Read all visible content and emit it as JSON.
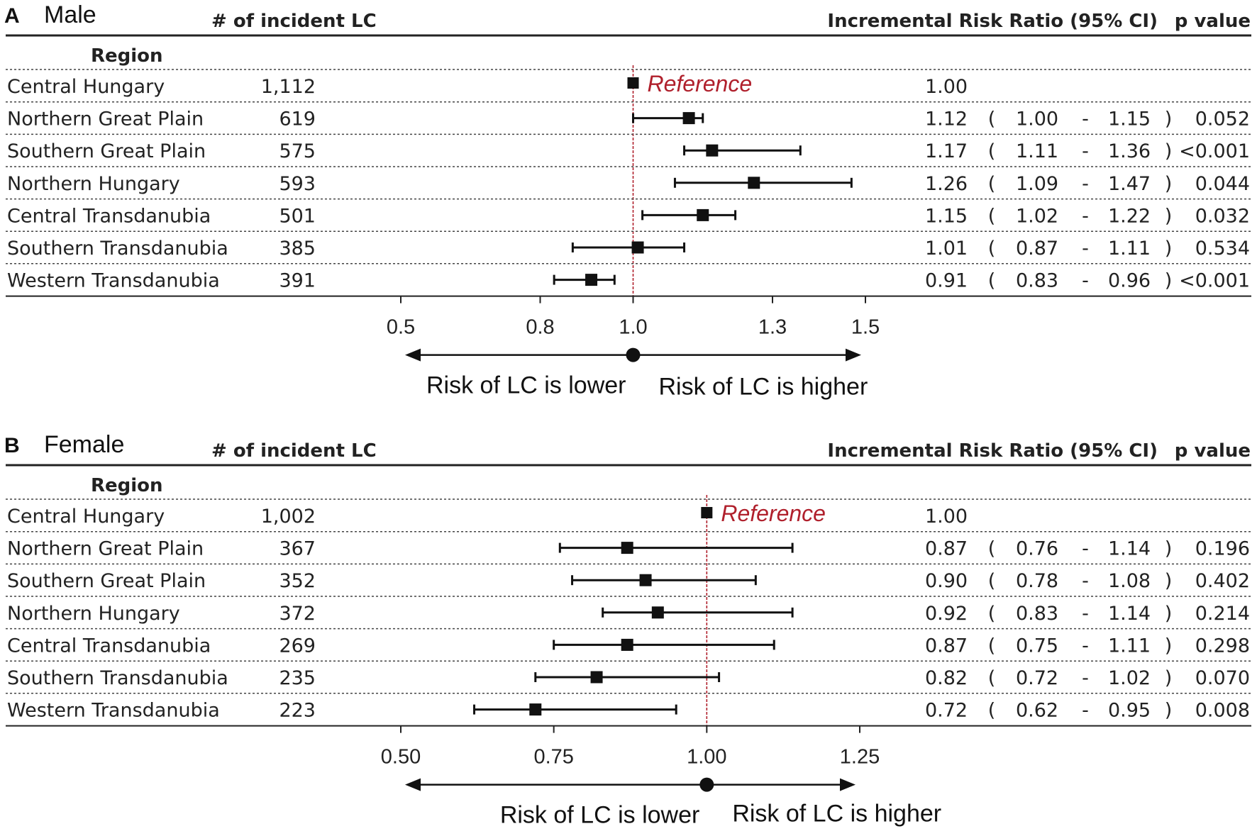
{
  "columns": {
    "incident": "# of incident LC",
    "irr": "Incremental Risk Ratio (95% CI)",
    "pvalue": "p value",
    "region": "Region"
  },
  "symbols": {
    "open": "(",
    "dash": "-",
    "close": ")"
  },
  "reference_label": "Reference",
  "risk_lower": "Risk of LC is lower",
  "risk_higher": "Risk of LC is higher",
  "colors": {
    "reference_line": "#b0202c",
    "marker": "#111111"
  },
  "chart_data": [
    {
      "type": "forest",
      "panel": "A",
      "title": "Male",
      "xlim": [
        0.5,
        1.5
      ],
      "ticks": [
        "0.5",
        "0.8",
        "1.0",
        "1.3",
        "1.5"
      ],
      "tick_values": [
        0.5,
        0.8,
        1.0,
        1.3,
        1.5
      ],
      "reference_value": 1.0,
      "rows": [
        {
          "region": "Central Hungary",
          "n": "1,112",
          "est": 1.0,
          "lo": null,
          "hi": null,
          "est_label": "1.00",
          "lo_label": "",
          "hi_label": "",
          "p": "",
          "reference": true
        },
        {
          "region": "Northern Great Plain",
          "n": "619",
          "est": 1.12,
          "lo": 1.0,
          "hi": 1.15,
          "est_label": "1.12",
          "lo_label": "1.00",
          "hi_label": "1.15",
          "p": "0.052"
        },
        {
          "region": "Southern Great Plain",
          "n": "575",
          "est": 1.17,
          "lo": 1.11,
          "hi": 1.36,
          "est_label": "1.17",
          "lo_label": "1.11",
          "hi_label": "1.36",
          "p": "<0.001"
        },
        {
          "region": "Northern Hungary",
          "n": "593",
          "est": 1.26,
          "lo": 1.09,
          "hi": 1.47,
          "est_label": "1.26",
          "lo_label": "1.09",
          "hi_label": "1.47",
          "p": "0.044"
        },
        {
          "region": "Central Transdanubia",
          "n": "501",
          "est": 1.15,
          "lo": 1.02,
          "hi": 1.22,
          "est_label": "1.15",
          "lo_label": "1.02",
          "hi_label": "1.22",
          "p": "0.032"
        },
        {
          "region": "Southern Transdanubia",
          "n": "385",
          "est": 1.01,
          "lo": 0.87,
          "hi": 1.11,
          "est_label": "1.01",
          "lo_label": "0.87",
          "hi_label": "1.11",
          "p": "0.534"
        },
        {
          "region": "Western Transdanubia",
          "n": "391",
          "est": 0.91,
          "lo": 0.83,
          "hi": 0.96,
          "est_label": "0.91",
          "lo_label": "0.83",
          "hi_label": "0.96",
          "p": "<0.001"
        }
      ]
    },
    {
      "type": "forest",
      "panel": "B",
      "title": "Female",
      "xlim": [
        0.5,
        1.25
      ],
      "ticks": [
        "0.50",
        "0.75",
        "1.00",
        "1.25"
      ],
      "tick_values": [
        0.5,
        0.75,
        1.0,
        1.25
      ],
      "reference_value": 1.0,
      "rows": [
        {
          "region": "Central Hungary",
          "n": "1,002",
          "est": 1.0,
          "lo": null,
          "hi": null,
          "est_label": "1.00",
          "lo_label": "",
          "hi_label": "",
          "p": "",
          "reference": true
        },
        {
          "region": "Northern Great Plain",
          "n": "367",
          "est": 0.87,
          "lo": 0.76,
          "hi": 1.14,
          "est_label": "0.87",
          "lo_label": "0.76",
          "hi_label": "1.14",
          "p": "0.196"
        },
        {
          "region": "Southern Great Plain",
          "n": "352",
          "est": 0.9,
          "lo": 0.78,
          "hi": 1.08,
          "est_label": "0.90",
          "lo_label": "0.78",
          "hi_label": "1.08",
          "p": "0.402"
        },
        {
          "region": "Northern Hungary",
          "n": "372",
          "est": 0.92,
          "lo": 0.83,
          "hi": 1.14,
          "est_label": "0.92",
          "lo_label": "0.83",
          "hi_label": "1.14",
          "p": "0.214"
        },
        {
          "region": "Central Transdanubia",
          "n": "269",
          "est": 0.87,
          "lo": 0.75,
          "hi": 1.11,
          "est_label": "0.87",
          "lo_label": "0.75",
          "hi_label": "1.11",
          "p": "0.298"
        },
        {
          "region": "Southern Transdanubia",
          "n": "235",
          "est": 0.82,
          "lo": 0.72,
          "hi": 1.02,
          "est_label": "0.82",
          "lo_label": "0.72",
          "hi_label": "1.02",
          "p": "0.070"
        },
        {
          "region": "Western Transdanubia",
          "n": "223",
          "est": 0.72,
          "lo": 0.62,
          "hi": 0.95,
          "est_label": "0.72",
          "lo_label": "0.62",
          "hi_label": "0.95",
          "p": "0.008"
        }
      ]
    }
  ]
}
